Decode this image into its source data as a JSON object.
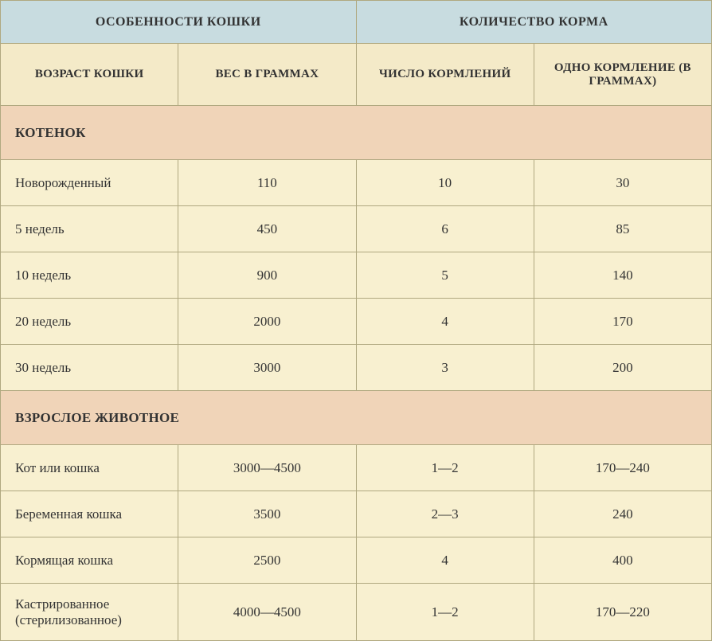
{
  "headers": {
    "group1": "ОСОБЕННОСТИ КОШКИ",
    "group2": "КОЛИЧЕСТВО КОРМА",
    "col1": "ВОЗРАСТ КОШКИ",
    "col2": "ВЕС В ГРАММАХ",
    "col3": "ЧИСЛО КОРМЛЕНИЙ",
    "col4": "ОДНО КОРМЛЕНИЕ (В ГРАММАХ)"
  },
  "sections": {
    "kitten": "КОТЕНОК",
    "adult": "ВЗРОСЛОЕ ЖИВОТНОЕ"
  },
  "rows": {
    "k0": {
      "age": "Новорожденный",
      "weight": "110",
      "feedings": "10",
      "perFeeding": "30"
    },
    "k1": {
      "age": "5 недель",
      "weight": "450",
      "feedings": "6",
      "perFeeding": "85"
    },
    "k2": {
      "age": "10 недель",
      "weight": "900",
      "feedings": "5",
      "perFeeding": "140"
    },
    "k3": {
      "age": "20 недель",
      "weight": "2000",
      "feedings": "4",
      "perFeeding": "170"
    },
    "k4": {
      "age": "30 недель",
      "weight": "3000",
      "feedings": "3",
      "perFeeding": "200"
    },
    "a0": {
      "age": "Кот или кошка",
      "weight": "3000—4500",
      "feedings": "1—2",
      "perFeeding": "170—240"
    },
    "a1": {
      "age": "Беременная кошка",
      "weight": "3500",
      "feedings": "2—3",
      "perFeeding": "240"
    },
    "a2": {
      "age": "Кормящая кошка",
      "weight": "2500",
      "feedings": "4",
      "perFeeding": "400"
    },
    "a3": {
      "age": "Кастрированное (стерилизованное)",
      "weight": "4000—4500",
      "feedings": "1—2",
      "perFeeding": "170—220"
    }
  },
  "style": {
    "headerGroupBg": "#c8dce0",
    "headerSubBg": "#f4eac8",
    "sectionBg": "#f0d4b8",
    "cellBg": "#f8f0d0",
    "borderColor": "#b0a880",
    "textColor": "#333333",
    "fontFamily": "Georgia, 'Times New Roman', serif",
    "columnWidths": [
      "25%",
      "25%",
      "25%",
      "25%"
    ]
  }
}
